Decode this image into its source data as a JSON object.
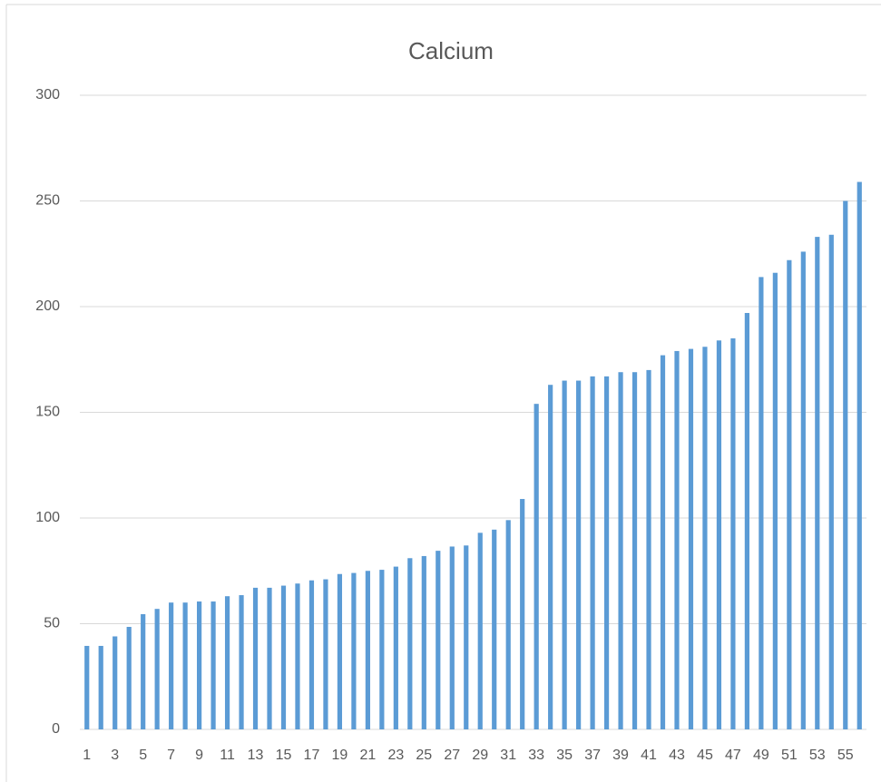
{
  "chart_data": {
    "type": "bar",
    "title": "Calcium",
    "categories": [
      "1",
      null,
      "3",
      null,
      "5",
      null,
      "7",
      null,
      "9",
      null,
      "11",
      null,
      "13",
      null,
      "15",
      null,
      "17",
      null,
      "19",
      null,
      "21",
      null,
      "23",
      null,
      "25",
      null,
      "27",
      null,
      "29",
      null,
      "31",
      null,
      "33",
      null,
      "35",
      null,
      "37",
      null,
      "39",
      null,
      "41",
      null,
      "43",
      null,
      "45",
      null,
      "47",
      null,
      "49",
      null,
      "51",
      null,
      "53",
      null,
      "55",
      null
    ],
    "values": [
      39.5,
      39.5,
      44,
      48.5,
      54.5,
      57,
      60,
      60,
      60.5,
      60.5,
      63,
      63.5,
      67,
      67,
      68,
      69,
      70.5,
      71,
      73.5,
      74,
      75,
      75.5,
      77,
      81,
      82,
      84.5,
      86.5,
      87,
      93,
      94.5,
      99,
      109,
      154,
      163,
      165,
      165,
      167,
      167,
      169,
      169,
      170,
      177,
      179,
      180,
      181,
      184,
      185,
      197,
      214,
      216,
      222,
      226,
      233,
      234,
      250,
      259
    ],
    "color": "#5b9bd5",
    "ylim": [
      0,
      300
    ],
    "yticks": [
      0,
      50,
      100,
      150,
      200,
      250,
      300
    ],
    "grid": true
  }
}
